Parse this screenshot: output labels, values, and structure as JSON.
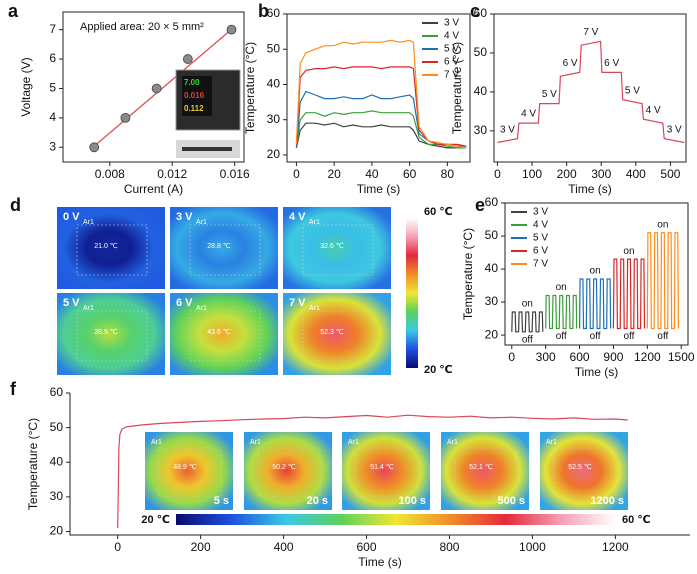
{
  "chart_data": [
    {
      "type": "scatter",
      "panel_label": "a",
      "x_label": "Current (A)",
      "y_label": "Voltage (V)",
      "annotation": "Applied area: 20 × 5 mm²",
      "inset_texts": [
        "7.00",
        "0.016",
        "0.112"
      ],
      "x": [
        0.007,
        0.009,
        0.011,
        0.013,
        0.0158
      ],
      "values": [
        3,
        4,
        5,
        6,
        7
      ],
      "color": "#8a8a8a",
      "fit": {
        "x": [
          0.0068,
          0.016
        ],
        "values": [
          2.95,
          7.1
        ],
        "color": "#d9534f"
      },
      "xlim": [
        0.005,
        0.0166
      ],
      "xticks": [
        0.008,
        0.012,
        0.016
      ],
      "ylim": [
        2.5,
        7.6
      ],
      "yticks": [
        3,
        4,
        5,
        6,
        7
      ]
    },
    {
      "type": "line",
      "panel_label": "b",
      "x_label": "Time (s)",
      "y_label": "Temperature (°C)",
      "legend": "upper right",
      "x": [
        0,
        2,
        5,
        10,
        15,
        20,
        25,
        30,
        35,
        40,
        45,
        50,
        55,
        60,
        62,
        65,
        70,
        75,
        80,
        85,
        90
      ],
      "series": [
        {
          "name": "3 V",
          "color": "#404040",
          "values": [
            22,
            27,
            29,
            29,
            28.5,
            29,
            28,
            28.5,
            28,
            28,
            28.5,
            28,
            28,
            28,
            27,
            24,
            23,
            22.5,
            22,
            22,
            22
          ]
        },
        {
          "name": "4 V",
          "color": "#3a9e3a",
          "values": [
            22,
            30,
            32,
            32,
            31,
            32,
            31.5,
            32,
            32,
            32.5,
            32,
            32,
            32,
            32,
            31,
            25,
            23,
            23,
            22.5,
            22,
            22
          ]
        },
        {
          "name": "5 V",
          "color": "#1f6fb4",
          "values": [
            22,
            35,
            38,
            37,
            36,
            36,
            36.5,
            36,
            36,
            37,
            36,
            36,
            36.5,
            37,
            36,
            26,
            24,
            23,
            23,
            22.5,
            22.5
          ]
        },
        {
          "name": "6 V",
          "color": "#d62728",
          "values": [
            23,
            42,
            44,
            44.5,
            44.5,
            45,
            44.5,
            45,
            45,
            45,
            44.5,
            45,
            45,
            45,
            44.5,
            27,
            24,
            23,
            23,
            23,
            22.5
          ]
        },
        {
          "name": "7 V",
          "color": "#ff8c1a",
          "values": [
            23,
            46,
            49,
            50,
            51,
            51,
            52,
            51.5,
            52,
            52,
            52,
            52.5,
            52,
            52.5,
            52,
            28,
            24,
            23.5,
            23,
            22.5,
            22
          ]
        }
      ],
      "xlim": [
        -5,
        92
      ],
      "xticks": [
        0,
        20,
        40,
        60,
        80
      ],
      "ylim": [
        18,
        60
      ],
      "yticks": [
        20,
        30,
        40,
        50,
        60
      ]
    },
    {
      "type": "line",
      "panel_label": "c",
      "x_label": "Time (s)",
      "y_label": "Temperature (°C)",
      "color": "#d9465a",
      "x": [
        0,
        58,
        62,
        118,
        122,
        178,
        182,
        238,
        242,
        298,
        302,
        358,
        362,
        418,
        422,
        478,
        482,
        540
      ],
      "values": [
        27,
        28,
        32,
        32,
        37,
        37,
        44,
        45,
        52,
        53,
        45,
        45,
        38,
        37,
        33,
        32,
        28,
        27
      ],
      "annotations": [
        "3 V",
        "4 V",
        "5 V",
        "6 V",
        "7 V",
        "6 V",
        "5 V",
        "4 V",
        "3 V"
      ],
      "xlim": [
        -10,
        545
      ],
      "xticks": [
        0,
        100,
        200,
        300,
        400,
        500
      ],
      "ylim": [
        22,
        60
      ],
      "yticks": [
        30,
        40,
        50,
        60
      ]
    },
    {
      "type": "line",
      "panel_label": "e",
      "x_label": "Time (s)",
      "y_label": "Temperature (°C)",
      "legend": "upper left",
      "series": [
        {
          "name": "3 V",
          "color": "#404040",
          "on_label": "on",
          "off_label": "off",
          "x": [
            0,
            5,
            30,
            35,
            60,
            65,
            90,
            95,
            120,
            125,
            150,
            155,
            180,
            185,
            210,
            215,
            240,
            245,
            270,
            275
          ],
          "values": [
            21,
            27,
            27,
            21,
            21,
            27,
            27,
            21,
            21,
            27,
            27,
            21,
            21,
            27,
            27,
            21,
            21,
            27,
            27,
            21
          ]
        },
        {
          "name": "4 V",
          "color": "#3a9e3a",
          "on_label": "on",
          "off_label": "off",
          "x": [
            300,
            305,
            330,
            335,
            360,
            365,
            390,
            395,
            420,
            425,
            450,
            455,
            480,
            485,
            510,
            515,
            540,
            545,
            570,
            575
          ],
          "values": [
            22,
            32,
            32,
            22,
            22,
            32,
            32,
            22,
            22,
            32,
            32,
            22,
            22,
            32,
            32,
            22,
            22,
            32,
            32,
            22
          ]
        },
        {
          "name": "5 V",
          "color": "#1f6fb4",
          "on_label": "on",
          "off_label": "off",
          "x": [
            600,
            605,
            630,
            635,
            660,
            665,
            690,
            695,
            720,
            725,
            750,
            755,
            780,
            785,
            810,
            815,
            840,
            845,
            870,
            875
          ],
          "values": [
            22,
            37,
            37,
            22,
            22,
            37,
            37,
            22,
            22,
            37,
            37,
            22,
            22,
            37,
            37,
            22,
            22,
            37,
            37,
            22
          ]
        },
        {
          "name": "6 V",
          "color": "#d62728",
          "on_label": "on",
          "off_label": "off",
          "x": [
            900,
            905,
            930,
            935,
            960,
            965,
            990,
            995,
            1020,
            1025,
            1050,
            1055,
            1080,
            1085,
            1110,
            1115,
            1140,
            1145,
            1170,
            1175
          ],
          "values": [
            22,
            43,
            43,
            22,
            22,
            43,
            43,
            22,
            22,
            43,
            43,
            22,
            22,
            43,
            43,
            22,
            22,
            43,
            43,
            22
          ]
        },
        {
          "name": "7 V",
          "color": "#ff8c1a",
          "on_label": "on",
          "off_label": "off",
          "x": [
            1200,
            1205,
            1230,
            1235,
            1260,
            1265,
            1290,
            1295,
            1320,
            1325,
            1350,
            1355,
            1380,
            1385,
            1410,
            1415,
            1440,
            1445,
            1470,
            1475
          ],
          "values": [
            22,
            51,
            51,
            22,
            22,
            51,
            51,
            22,
            22,
            51,
            51,
            22,
            22,
            51,
            51,
            22,
            22,
            51,
            51,
            22
          ]
        }
      ],
      "xlim": [
        -60,
        1560
      ],
      "xticks": [
        0,
        300,
        600,
        900,
        1200,
        1500
      ],
      "ylim": [
        17,
        60
      ],
      "yticks": [
        20,
        30,
        40,
        50,
        60
      ]
    },
    {
      "type": "line",
      "panel_label": "f",
      "x_label": "Time (s)",
      "y_label": "Temperature (°C)",
      "color": "#d9465a",
      "x": [
        0,
        3,
        5,
        10,
        20,
        40,
        60,
        100,
        150,
        200,
        250,
        300,
        350,
        400,
        450,
        500,
        550,
        600,
        650,
        700,
        750,
        800,
        850,
        900,
        950,
        1000,
        1050,
        1100,
        1150,
        1200,
        1230
      ],
      "values": [
        21,
        44,
        48,
        49.5,
        50.2,
        50.5,
        50.8,
        51.2,
        51.5,
        51.8,
        52,
        52.3,
        52.5,
        52.6,
        53,
        52.8,
        53.2,
        53.5,
        53,
        53.6,
        53.2,
        53,
        53.3,
        52.8,
        53,
        52.7,
        52.5,
        52.8,
        52.4,
        52.5,
        52.2
      ],
      "xlim": [
        -115,
        1380
      ],
      "xticks": [
        0,
        200,
        400,
        600,
        800,
        1000,
        1200
      ],
      "ylim": [
        19,
        60
      ],
      "yticks": [
        20,
        30,
        40,
        50,
        60
      ]
    }
  ],
  "thermal_d": {
    "panel_label": "d",
    "tiles": [
      {
        "voltage": "0 V",
        "area": "Ar1",
        "temp": "21.0 ℃"
      },
      {
        "voltage": "3 V",
        "area": "Ar1",
        "temp": "28.8 ℃"
      },
      {
        "voltage": "4 V",
        "area": "Ar1",
        "temp": "32.6 ℃"
      },
      {
        "voltage": "5 V",
        "area": "Ar1",
        "temp": "38.9 ℃"
      },
      {
        "voltage": "6 V",
        "area": "Ar1",
        "temp": "43.6 ℃"
      },
      {
        "voltage": "7 V",
        "area": "Ar1",
        "temp": "52.3 ℃"
      }
    ],
    "colorbar": {
      "max": "60 ℃",
      "min": "20 ℃"
    }
  },
  "thermal_f": {
    "tiles": [
      {
        "area": "Ar1",
        "temp": "48.9 ℃",
        "time": "5 s"
      },
      {
        "area": "Ar1",
        "temp": "50.2 ℃",
        "time": "20 s"
      },
      {
        "area": "Ar1",
        "temp": "51.4 ℃",
        "time": "100 s"
      },
      {
        "area": "Ar1",
        "temp": "52.1 ℃",
        "time": "500 s"
      },
      {
        "area": "Ar1",
        "temp": "52.5 ℃",
        "time": "1200 s"
      }
    ],
    "colorbar": {
      "min": "20 ℃",
      "max": "60 ℃"
    }
  }
}
